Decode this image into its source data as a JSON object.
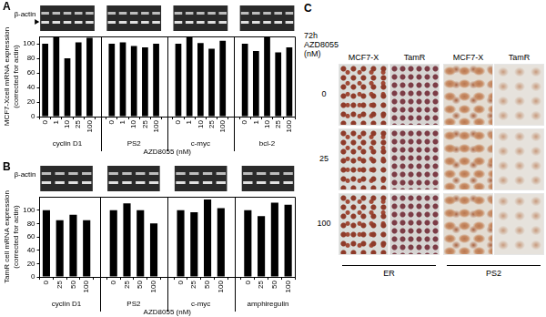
{
  "chart_data": [
    {
      "type": "bar",
      "panel": "A",
      "band_label": "β-actin",
      "y_label": [
        "MCF7-Xcell mRNA expression",
        "(corrected for actin)"
      ],
      "x_label": "AZD8055 (nM)",
      "color": "#000000",
      "grid": false,
      "ylim": [
        0,
        110
      ],
      "yticks": [
        0,
        20,
        40,
        60,
        80,
        100
      ],
      "groups": [
        {
          "name": "cyclin D1",
          "categories": [
            "0",
            "1",
            "10",
            "25",
            "100"
          ],
          "values": [
            100,
            110,
            80,
            102,
            108
          ]
        },
        {
          "name": "PS2",
          "categories": [
            "0",
            "1",
            "10",
            "25",
            "100"
          ],
          "values": [
            100,
            102,
            97,
            95,
            100
          ]
        },
        {
          "name": "c-myc",
          "categories": [
            "0",
            "1",
            "10",
            "25",
            "100"
          ],
          "values": [
            100,
            110,
            101,
            93,
            104
          ]
        },
        {
          "name": "bcl-2",
          "categories": [
            "0",
            "1",
            "10",
            "25",
            "100"
          ],
          "values": [
            100,
            90,
            112,
            88,
            95
          ]
        }
      ]
    },
    {
      "type": "bar",
      "panel": "B",
      "band_label": "β-actin",
      "y_label": [
        "TamR cell mRNA expression",
        "(corrected for actin)"
      ],
      "x_label": "AZD8055 (nM)",
      "color": "#000000",
      "grid": false,
      "ylim": [
        0,
        120
      ],
      "yticks": [
        0,
        20,
        40,
        60,
        80,
        100
      ],
      "groups": [
        {
          "name": "cyclin D1",
          "categories": [
            "0",
            "25",
            "50",
            "100"
          ],
          "values": [
            100,
            85,
            93,
            85
          ]
        },
        {
          "name": "PS2",
          "categories": [
            "0",
            "25",
            "50",
            "100"
          ],
          "values": [
            100,
            110,
            100,
            80
          ]
        },
        {
          "name": "c-myc",
          "categories": [
            "0",
            "25",
            "50",
            "100"
          ],
          "values": [
            100,
            97,
            116,
            103
          ]
        },
        {
          "name": "amphiregulin",
          "categories": [
            "0",
            "25",
            "50",
            "100"
          ],
          "values": [
            100,
            91,
            111,
            108
          ]
        }
      ]
    }
  ],
  "panel_c": {
    "panel": "C",
    "row_header": [
      "72h",
      "AZD8055",
      "(nM)"
    ],
    "rows": [
      "0",
      "25",
      "100"
    ],
    "column_groups": [
      {
        "name": "ER",
        "columns": [
          "MCF7-X",
          "TamR"
        ]
      },
      {
        "name": "PS2",
        "columns": [
          "MCF7-X",
          "TamR"
        ]
      }
    ]
  }
}
